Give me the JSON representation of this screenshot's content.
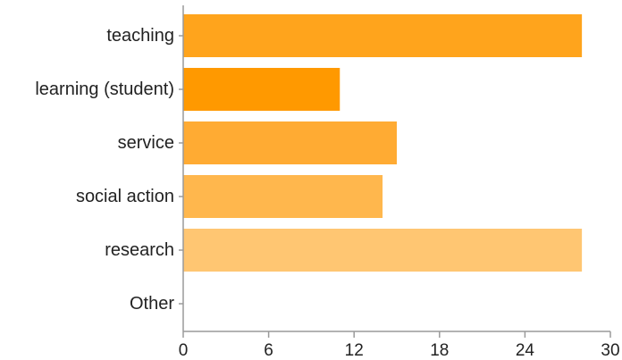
{
  "chart_data": {
    "type": "bar",
    "orientation": "horizontal",
    "title": "",
    "xlabel": "",
    "ylabel": "",
    "categories": [
      "teaching",
      "learning (student)",
      "service",
      "social action",
      "research",
      "Other"
    ],
    "values": [
      28,
      11,
      15,
      14,
      28,
      0
    ],
    "bar_colors": [
      "#ffa41c",
      "#ff9900",
      "#ffab33",
      "#ffb74d",
      "#ffc672",
      "#ffd08a"
    ],
    "xlim": [
      0,
      30
    ],
    "xticks": [
      0,
      6,
      12,
      18,
      24,
      30
    ],
    "grid": false,
    "legend": "none"
  }
}
